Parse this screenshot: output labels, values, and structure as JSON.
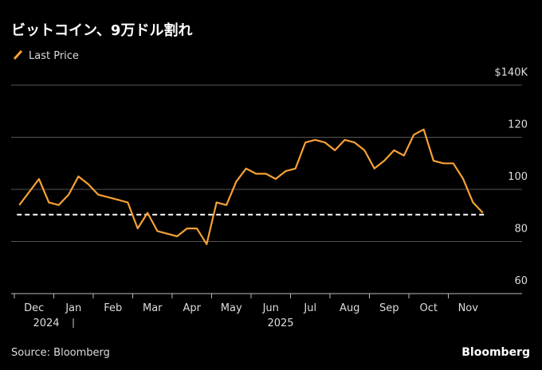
{
  "chart_data": {
    "type": "line",
    "title": "ビットコイン、9万ドル割れ",
    "source": "Source: Bloomberg",
    "brand": "Bloomberg",
    "categories": [
      "Dec",
      "Jan",
      "Feb",
      "Mar",
      "Apr",
      "May",
      "Jun",
      "Jul",
      "Aug",
      "Sep",
      "Oct",
      "Nov"
    ],
    "year_labels": [
      "2024",
      "2025"
    ],
    "x": [
      "2024-12",
      "2024-12",
      "2024-12",
      "2024-12",
      "2025-01",
      "2025-01",
      "2025-01",
      "2025-01",
      "2025-02",
      "2025-02",
      "2025-02",
      "2025-02",
      "2025-03",
      "2025-03",
      "2025-03",
      "2025-03",
      "2025-04",
      "2025-04",
      "2025-04",
      "2025-04",
      "2025-05",
      "2025-05",
      "2025-05",
      "2025-05",
      "2025-06",
      "2025-06",
      "2025-06",
      "2025-06",
      "2025-07",
      "2025-07",
      "2025-07",
      "2025-07",
      "2025-08",
      "2025-08",
      "2025-08",
      "2025-08",
      "2025-09",
      "2025-09",
      "2025-09",
      "2025-09",
      "2025-10",
      "2025-10",
      "2025-10",
      "2025-10",
      "2025-11",
      "2025-11",
      "2025-11",
      "2025-11"
    ],
    "series": [
      {
        "name": "Last Price",
        "color": "#f7a134",
        "values": [
          94,
          99,
          104,
          95,
          94,
          98,
          105,
          102,
          98,
          97,
          96,
          95,
          85,
          91,
          84,
          83,
          82,
          85,
          85,
          79,
          95,
          94,
          103,
          108,
          106,
          106,
          104,
          107,
          108,
          118,
          119,
          118,
          115,
          119,
          118,
          115,
          108,
          111,
          115,
          113,
          121,
          123,
          111,
          110,
          110,
          104,
          95,
          91
        ]
      }
    ],
    "reference_line": 90.3,
    "ylim": [
      60,
      142
    ],
    "yticks": [
      60,
      80,
      100,
      120,
      {
        "value": 140,
        "label": "$140K"
      }
    ],
    "grid": true
  }
}
